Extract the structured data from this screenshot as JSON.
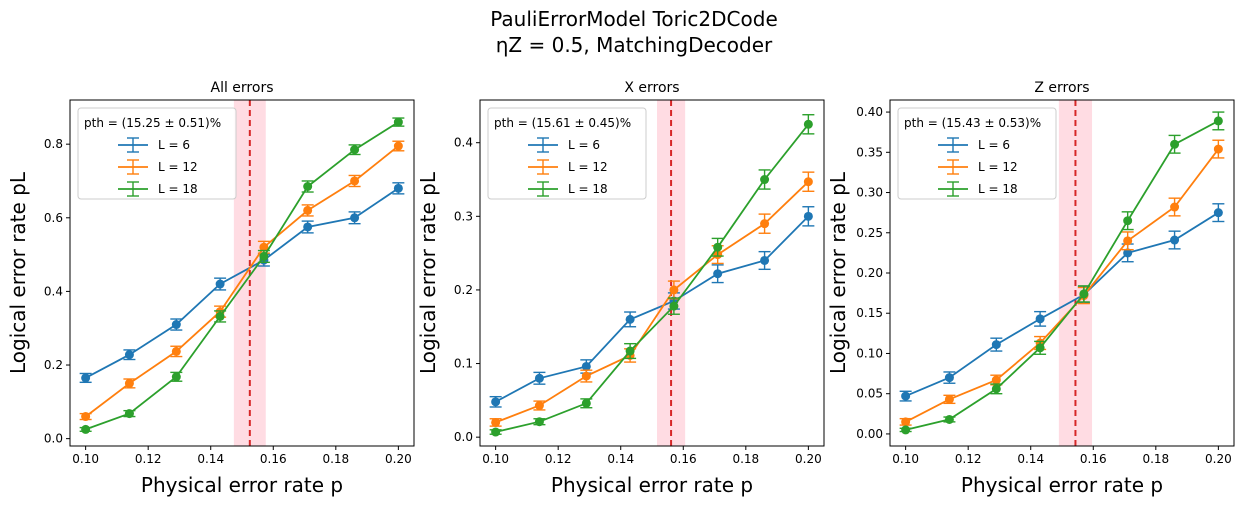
{
  "figure": {
    "title_line1": "PauliErrorModel Toric2DCode",
    "title_line2": "ηZ = 0.5, MatchingDecoder"
  },
  "chart_data": [
    {
      "type": "line",
      "title": "All errors",
      "xlabel": "Physical error rate p",
      "ylabel": "Logical error rate pL",
      "xlim": [
        0.095,
        0.205
      ],
      "ylim": [
        -0.02,
        0.92
      ],
      "xticks": [
        "0.10",
        "0.12",
        "0.14",
        "0.16",
        "0.18",
        "0.20"
      ],
      "yticks": [
        "0.0",
        "0.2",
        "0.4",
        "0.6",
        "0.8"
      ],
      "threshold": {
        "label": "pth = (15.25 ± 0.51)%",
        "value": 0.1525,
        "error": 0.0051
      },
      "legend_position": "upper-left",
      "x": [
        0.1,
        0.114,
        0.129,
        0.143,
        0.157,
        0.171,
        0.186,
        0.2
      ],
      "series": [
        {
          "name": "L = 6",
          "color": "#1f77b4",
          "values": [
            0.165,
            0.228,
            0.31,
            0.42,
            0.485,
            0.575,
            0.6,
            0.68
          ],
          "errors": [
            0.012,
            0.013,
            0.015,
            0.016,
            0.016,
            0.016,
            0.016,
            0.015
          ]
        },
        {
          "name": "L = 12",
          "color": "#ff7f0e",
          "values": [
            0.06,
            0.15,
            0.237,
            0.345,
            0.52,
            0.62,
            0.7,
            0.795
          ],
          "errors": [
            0.008,
            0.012,
            0.014,
            0.015,
            0.016,
            0.015,
            0.015,
            0.013
          ]
        },
        {
          "name": "L = 18",
          "color": "#2ca02c",
          "values": [
            0.025,
            0.068,
            0.168,
            0.332,
            0.495,
            0.685,
            0.785,
            0.86
          ],
          "errors": [
            0.005,
            0.008,
            0.012,
            0.015,
            0.016,
            0.015,
            0.013,
            0.011
          ]
        }
      ]
    },
    {
      "type": "line",
      "title": "X errors",
      "xlabel": "Physical error rate p",
      "ylabel": "Logical error rate pL",
      "xlim": [
        0.095,
        0.205
      ],
      "ylim": [
        -0.012,
        0.458
      ],
      "xticks": [
        "0.10",
        "0.12",
        "0.14",
        "0.16",
        "0.18",
        "0.20"
      ],
      "yticks": [
        "0.0",
        "0.1",
        "0.2",
        "0.3",
        "0.4"
      ],
      "threshold": {
        "label": "pth = (15.61 ± 0.45)%",
        "value": 0.1561,
        "error": 0.0045
      },
      "legend_position": "upper-left",
      "x": [
        0.1,
        0.114,
        0.129,
        0.143,
        0.157,
        0.171,
        0.186,
        0.2
      ],
      "series": [
        {
          "name": "L = 6",
          "color": "#1f77b4",
          "values": [
            0.048,
            0.08,
            0.096,
            0.16,
            0.185,
            0.222,
            0.24,
            0.3
          ],
          "errors": [
            0.007,
            0.008,
            0.009,
            0.01,
            0.011,
            0.012,
            0.012,
            0.013
          ]
        },
        {
          "name": "L = 12",
          "color": "#ff7f0e",
          "values": [
            0.02,
            0.043,
            0.083,
            0.111,
            0.2,
            0.248,
            0.29,
            0.347
          ],
          "errors": [
            0.005,
            0.006,
            0.008,
            0.009,
            0.012,
            0.012,
            0.013,
            0.013
          ]
        },
        {
          "name": "L = 18",
          "color": "#2ca02c",
          "values": [
            0.007,
            0.021,
            0.046,
            0.117,
            0.178,
            0.258,
            0.35,
            0.425
          ],
          "errors": [
            0.003,
            0.004,
            0.006,
            0.01,
            0.011,
            0.012,
            0.013,
            0.013
          ]
        }
      ]
    },
    {
      "type": "line",
      "title": "Z errors",
      "xlabel": "Physical error rate p",
      "ylabel": "Logical error rate pL",
      "xlim": [
        0.095,
        0.205
      ],
      "ylim": [
        -0.015,
        0.415
      ],
      "xticks": [
        "0.10",
        "0.12",
        "0.14",
        "0.16",
        "0.18",
        "0.20"
      ],
      "yticks": [
        "0.00",
        "0.05",
        "0.10",
        "0.15",
        "0.20",
        "0.25",
        "0.30",
        "0.35",
        "0.40"
      ],
      "threshold": {
        "label": "pth = (15.43 ± 0.53)%",
        "value": 0.1543,
        "error": 0.0053
      },
      "legend_position": "upper-left",
      "x": [
        0.1,
        0.114,
        0.129,
        0.143,
        0.157,
        0.171,
        0.186,
        0.2
      ],
      "series": [
        {
          "name": "L = 6",
          "color": "#1f77b4",
          "values": [
            0.047,
            0.07,
            0.111,
            0.143,
            0.173,
            0.225,
            0.241,
            0.275
          ],
          "errors": [
            0.006,
            0.007,
            0.008,
            0.009,
            0.01,
            0.011,
            0.011,
            0.011
          ]
        },
        {
          "name": "L = 12",
          "color": "#ff7f0e",
          "values": [
            0.015,
            0.043,
            0.067,
            0.113,
            0.172,
            0.24,
            0.282,
            0.354
          ],
          "errors": [
            0.004,
            0.005,
            0.006,
            0.008,
            0.01,
            0.011,
            0.011,
            0.011
          ]
        },
        {
          "name": "L = 18",
          "color": "#2ca02c",
          "values": [
            0.005,
            0.018,
            0.056,
            0.107,
            0.174,
            0.265,
            0.36,
            0.389
          ],
          "errors": [
            0.002,
            0.003,
            0.006,
            0.008,
            0.01,
            0.011,
            0.011,
            0.011
          ]
        }
      ]
    }
  ]
}
